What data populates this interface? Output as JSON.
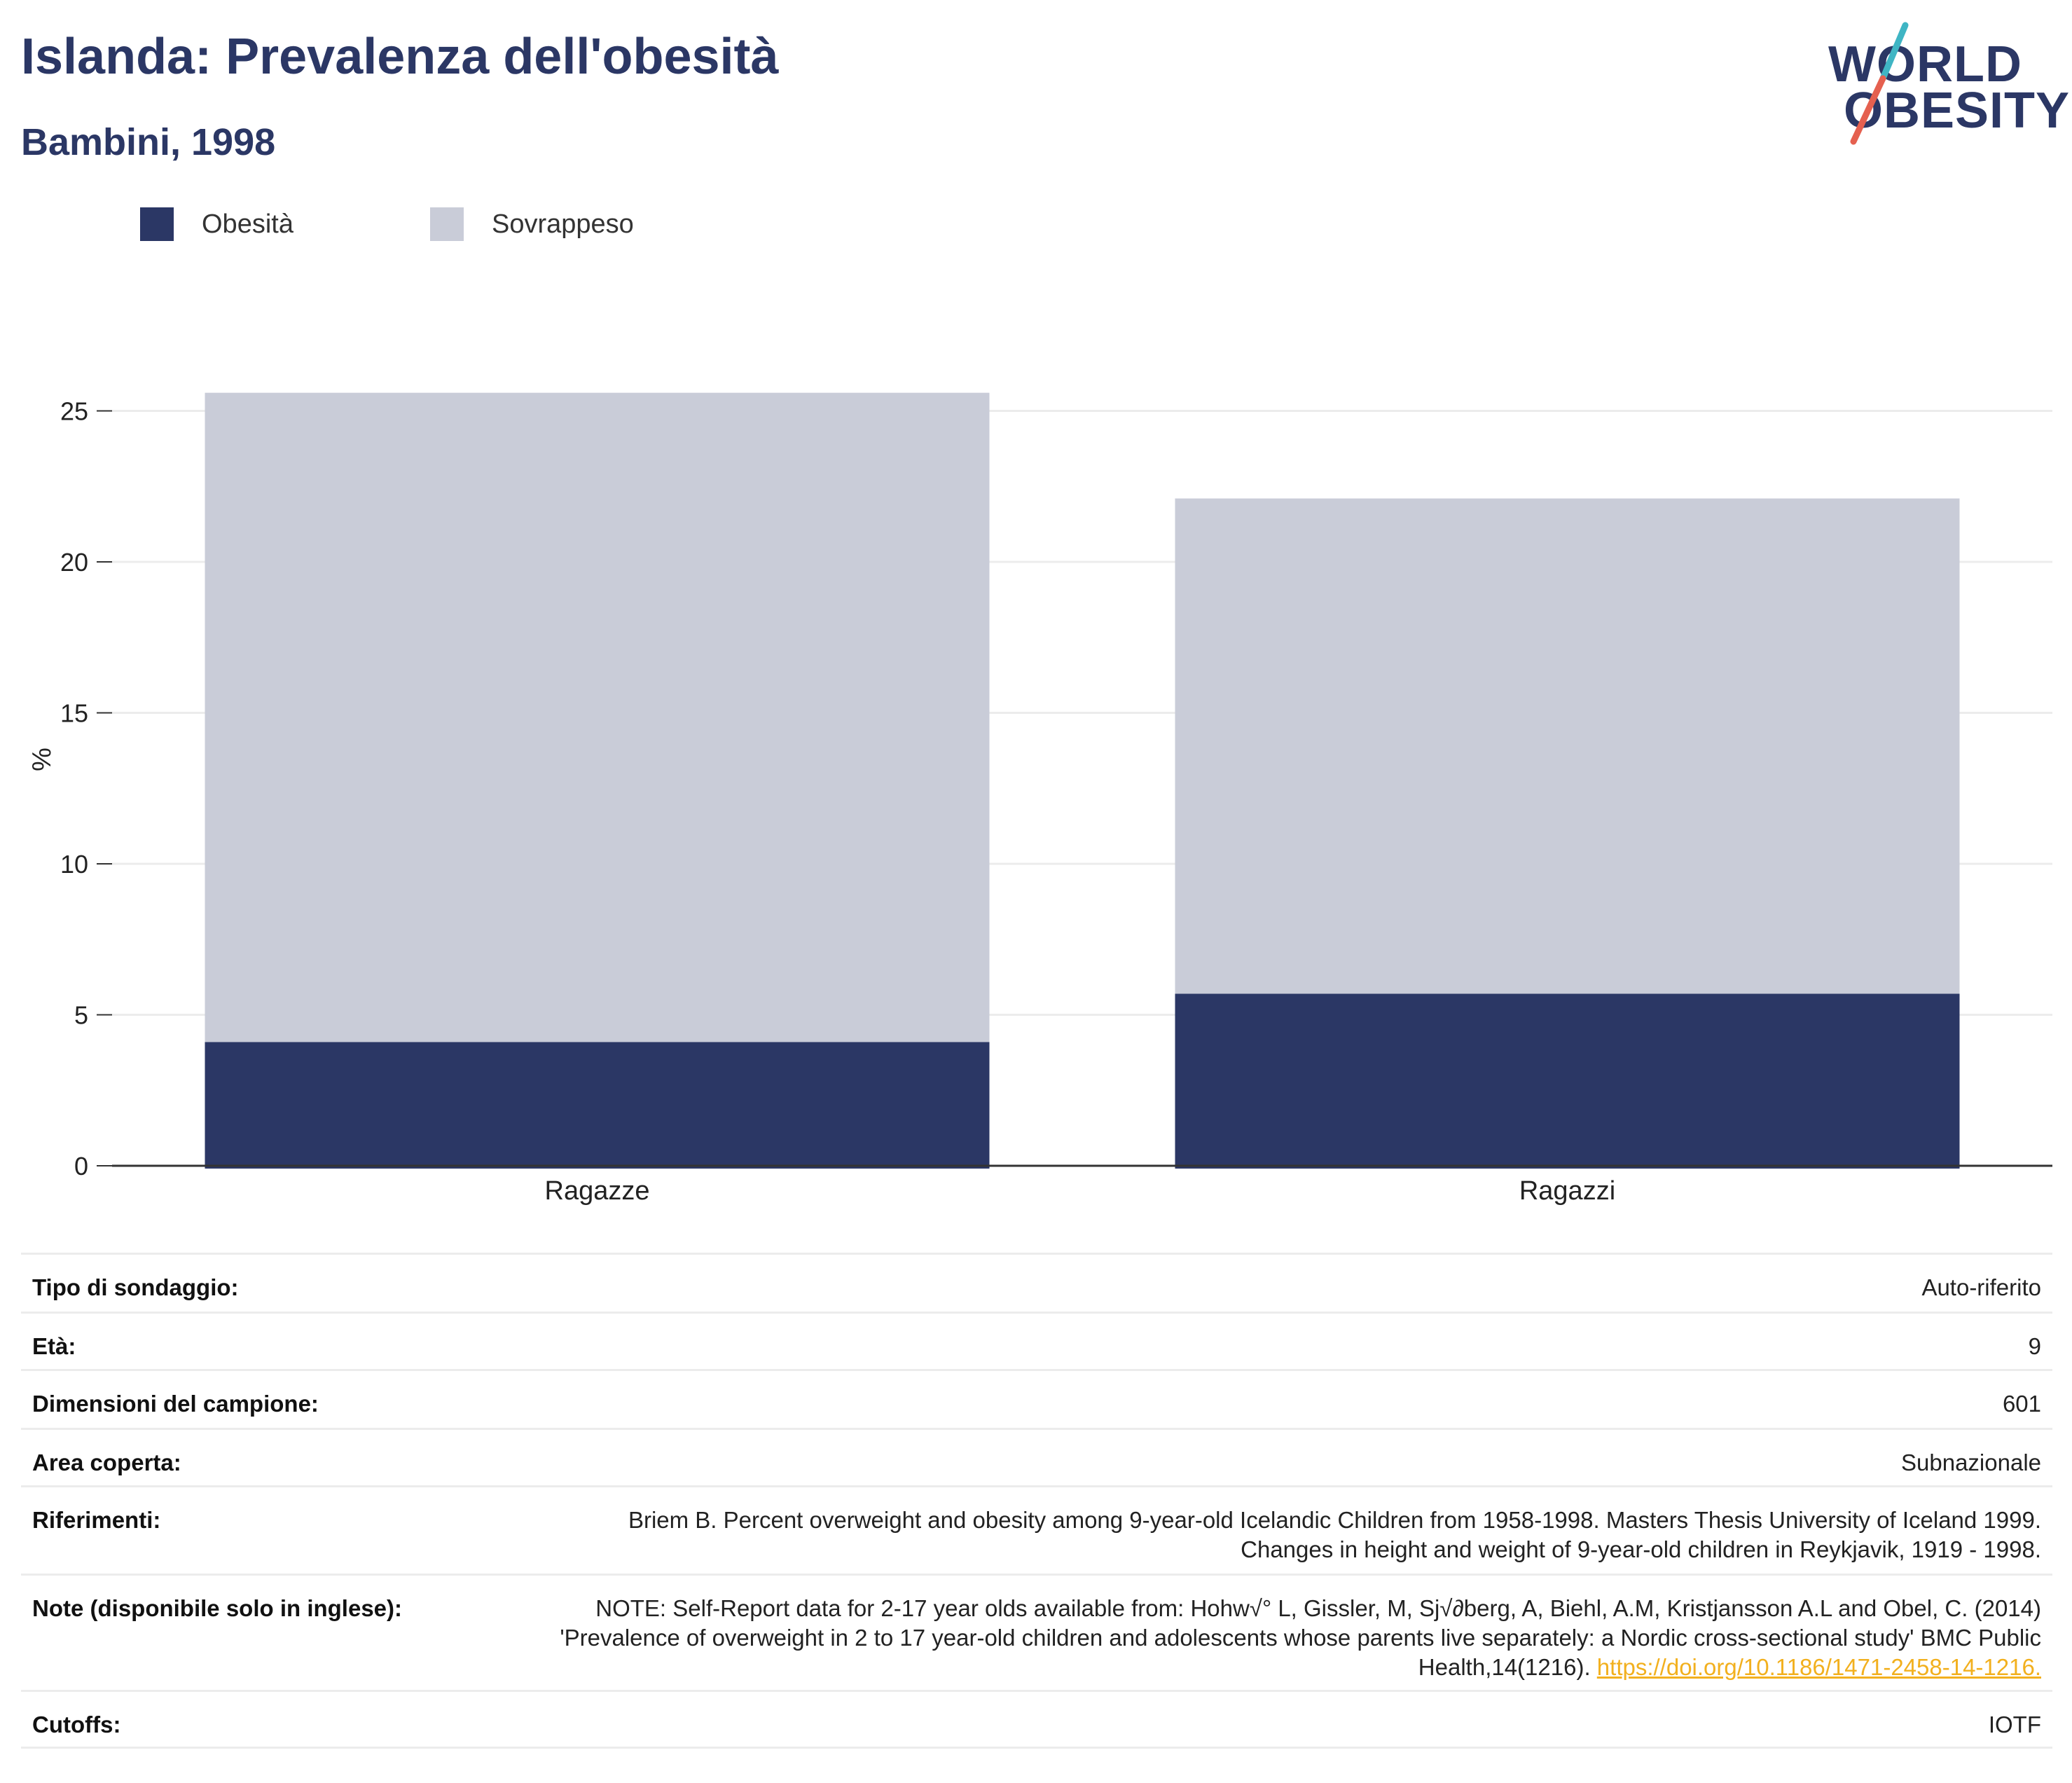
{
  "header": {
    "title": "Islanda: Prevalenza dell'obesità",
    "subtitle": "Bambini, 1998"
  },
  "logo": {
    "line1": "WORLD",
    "line2": "OBESITY",
    "slash_colors": [
      "#3fb5c4",
      "#e5604f"
    ]
  },
  "legend": [
    {
      "label": "Obesità",
      "color": "#2b3765"
    },
    {
      "label": "Sovrappeso",
      "color": "#c9ccd8"
    }
  ],
  "chart_data": {
    "type": "bar",
    "stacked": true,
    "categories": [
      "Ragazze",
      "Ragazzi"
    ],
    "series": [
      {
        "name": "Obesità",
        "color": "#2b3765",
        "values": [
          4.1,
          5.7
        ]
      },
      {
        "name": "Sovrappeso",
        "color": "#c9ccd8",
        "values": [
          21.5,
          16.4
        ]
      }
    ],
    "ylabel": "%",
    "ylim": [
      0,
      27
    ],
    "yticks": [
      0,
      5,
      10,
      15,
      20,
      25
    ],
    "grid": true,
    "legend_position": "top-left"
  },
  "meta": {
    "survey_type": {
      "label": "Tipo di sondaggio:",
      "value": "Auto-riferito"
    },
    "age": {
      "label": "Età:",
      "value": "9"
    },
    "sample_size": {
      "label": "Dimensioni del campione:",
      "value": "601"
    },
    "area": {
      "label": "Area coperta:",
      "value": "Subnazionale"
    },
    "references": {
      "label": "Riferimenti:",
      "value": "Briem B. Percent overweight and obesity among 9-year-old Icelandic Children from 1958-1998. Masters Thesis University of Iceland 1999. Changes in height and weight of 9-year-old children in Reykjavik, 1919 - 1998."
    },
    "notes": {
      "label": "Note (disponibile solo in inglese):",
      "value": "NOTE: Self-Report data for 2-17 year olds available from: Hohw√° L, Gissler, M, Sj√∂berg, A, Biehl, A.M, Kristjansson A.L and Obel, C. (2014) 'Prevalence of overweight in 2 to 17 year-old children and adolescents whose parents live separately: a Nordic cross-sectional study' BMC Public Health,14(1216).",
      "link": "https://doi.org/10.1186/1471-2458-14-1216."
    },
    "cutoffs": {
      "label": "Cutoffs:",
      "value": "IOTF"
    }
  }
}
